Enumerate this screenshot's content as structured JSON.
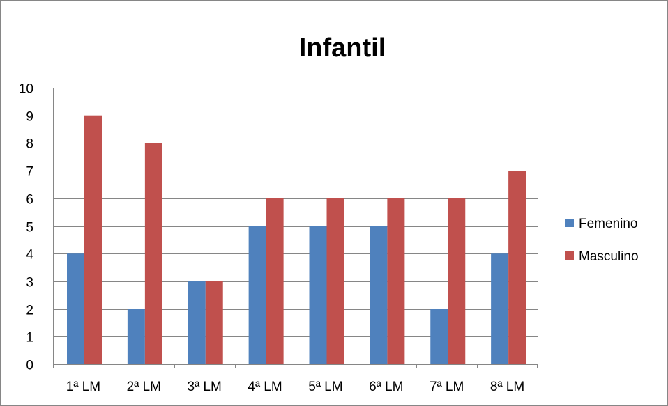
{
  "chart_data": {
    "type": "bar",
    "title": "Infantil",
    "xlabel": "",
    "ylabel": "",
    "categories": [
      "1ª LM",
      "2ª LM",
      "3ª LM",
      "4ª LM",
      "5ª LM",
      "6ª LM",
      "7ª LM",
      "8ª LM"
    ],
    "series": [
      {
        "name": "Femenino",
        "color": "#4F81BD",
        "values": [
          4,
          2,
          3,
          5,
          5,
          5,
          2,
          4
        ]
      },
      {
        "name": "Masculino",
        "color": "#C0504D",
        "values": [
          9,
          8,
          3,
          6,
          6,
          6,
          6,
          7
        ]
      }
    ],
    "ylim": [
      0,
      10
    ],
    "yticks": [
      "0",
      "1",
      "2",
      "3",
      "4",
      "5",
      "6",
      "7",
      "8",
      "9",
      "10"
    ],
    "grid": true,
    "legend": "right"
  }
}
